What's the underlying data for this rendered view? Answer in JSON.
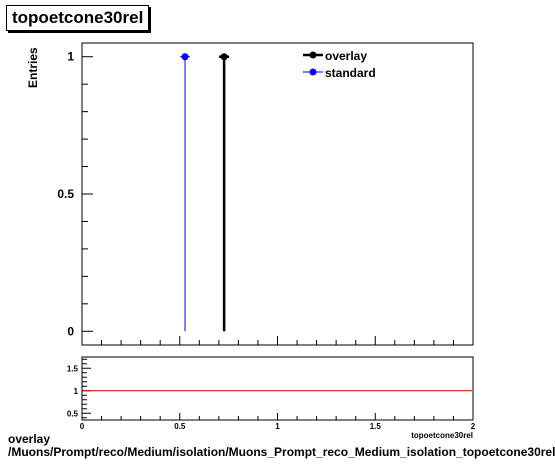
{
  "chart_data": [
    {
      "type": "scatter",
      "title": "topoetcone30rel",
      "xlabel": "topoetcone30rel",
      "ylabel": "Entries",
      "xlim": [
        0,
        2
      ],
      "ylim": [
        -0.05,
        1.05
      ],
      "y_ticks": [
        "0",
        "0.5",
        "1"
      ],
      "legend_position": "top-right",
      "series": [
        {
          "name": "overlay",
          "color": "#000000",
          "x": [
            0.727
          ],
          "y": [
            1
          ]
        },
        {
          "name": "standard",
          "color": "#0000ff",
          "x": [
            0.527
          ],
          "y": [
            1
          ]
        }
      ]
    },
    {
      "type": "line",
      "title": "",
      "xlabel": "topoetcone30rel",
      "ylabel": "",
      "xlim": [
        0,
        2
      ],
      "ylim": [
        0.35,
        1.75
      ],
      "x_ticks": [
        "0",
        "0.5",
        "1",
        "1.5",
        "2"
      ],
      "y_ticks": [
        "0.5",
        "1",
        "1.5"
      ],
      "reference_line": {
        "y": 1,
        "color": "#cc0000"
      }
    }
  ],
  "footer": {
    "line1": "overlay",
    "line2": "/Muons/Prompt/reco/Medium/isolation/Muons_Prompt_reco_Medium_isolation_topoetcone30rel"
  }
}
